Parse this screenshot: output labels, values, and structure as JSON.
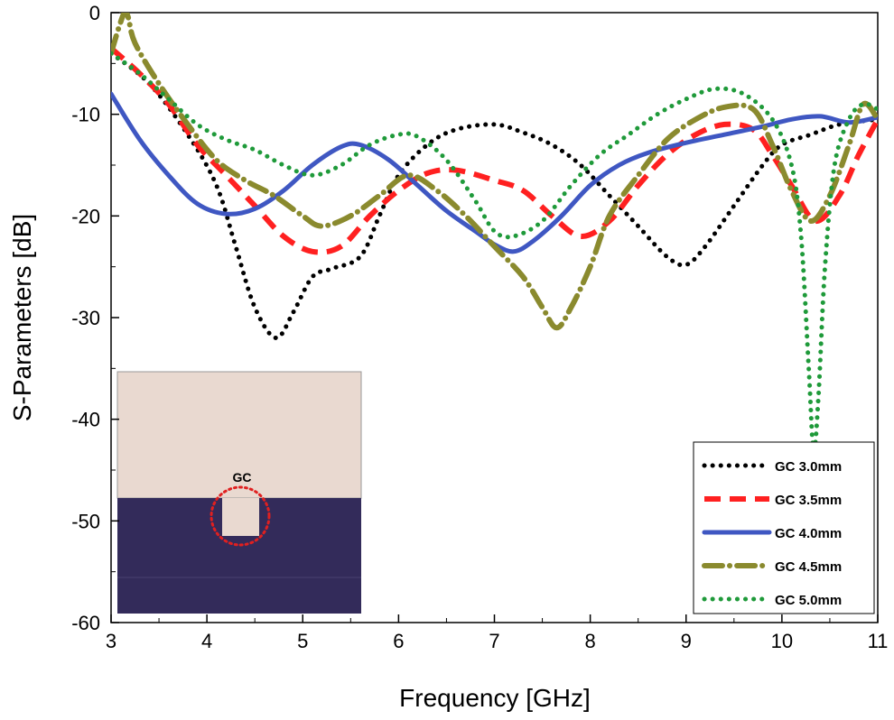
{
  "chart_data": {
    "type": "line",
    "title": "",
    "xlabel": "Frequency [GHz]",
    "ylabel": "S-Parameters [dB]",
    "xlim": [
      3,
      11
    ],
    "ylim": [
      -60,
      0
    ],
    "x_ticks": [
      3,
      4,
      5,
      6,
      7,
      8,
      9,
      10,
      11
    ],
    "y_ticks": [
      0,
      -10,
      -20,
      -30,
      -40,
      -50,
      -60
    ],
    "x_tick_labels": [
      "3",
      "4",
      "5",
      "6",
      "7",
      "8",
      "9",
      "10",
      "11"
    ],
    "y_tick_labels": [
      "0",
      "-10",
      "-20",
      "-30",
      "-40",
      "-50",
      "-60"
    ],
    "legend_position": "bottom-right",
    "series": [
      {
        "name": "GC 3.0mm",
        "color": "#000000",
        "style": "dotted",
        "points": [
          [
            3.0,
            -4
          ],
          [
            3.4,
            -7
          ],
          [
            3.8,
            -12
          ],
          [
            4.1,
            -17
          ],
          [
            4.3,
            -23
          ],
          [
            4.5,
            -29
          ],
          [
            4.72,
            -32
          ],
          [
            4.9,
            -29.5
          ],
          [
            5.1,
            -26
          ],
          [
            5.3,
            -25.2
          ],
          [
            5.6,
            -24
          ],
          [
            5.8,
            -20
          ],
          [
            6.0,
            -16
          ],
          [
            6.3,
            -13
          ],
          [
            6.6,
            -11.5
          ],
          [
            7.0,
            -11
          ],
          [
            7.3,
            -11.8
          ],
          [
            7.6,
            -13
          ],
          [
            7.9,
            -15
          ],
          [
            8.2,
            -18
          ],
          [
            8.5,
            -21
          ],
          [
            8.8,
            -24
          ],
          [
            9.0,
            -24.8
          ],
          [
            9.2,
            -23
          ],
          [
            9.5,
            -19
          ],
          [
            9.8,
            -15
          ],
          [
            10.0,
            -13
          ],
          [
            10.3,
            -12
          ],
          [
            10.6,
            -11
          ],
          [
            11.0,
            -10.5
          ]
        ]
      },
      {
        "name": "GC 3.5mm",
        "color": "#ff2020",
        "style": "dashed",
        "points": [
          [
            3.0,
            -3.5
          ],
          [
            3.3,
            -6
          ],
          [
            3.6,
            -9
          ],
          [
            3.9,
            -13
          ],
          [
            4.2,
            -16
          ],
          [
            4.5,
            -19
          ],
          [
            4.8,
            -22
          ],
          [
            5.1,
            -23.5
          ],
          [
            5.4,
            -23
          ],
          [
            5.7,
            -20
          ],
          [
            6.0,
            -17.5
          ],
          [
            6.3,
            -15.8
          ],
          [
            6.6,
            -15.5
          ],
          [
            7.0,
            -16.5
          ],
          [
            7.3,
            -17.5
          ],
          [
            7.6,
            -20
          ],
          [
            7.9,
            -22
          ],
          [
            8.2,
            -20.5
          ],
          [
            8.5,
            -17
          ],
          [
            8.8,
            -14
          ],
          [
            9.1,
            -12
          ],
          [
            9.4,
            -11
          ],
          [
            9.7,
            -11.5
          ],
          [
            9.9,
            -14
          ],
          [
            10.1,
            -17
          ],
          [
            10.35,
            -20.5
          ],
          [
            10.6,
            -18
          ],
          [
            10.8,
            -14
          ],
          [
            11.0,
            -10.5
          ]
        ]
      },
      {
        "name": "GC 4.0mm",
        "color": "#3f57c2",
        "style": "solid",
        "points": [
          [
            3.0,
            -8
          ],
          [
            3.3,
            -12.5
          ],
          [
            3.6,
            -16
          ],
          [
            3.9,
            -18.8
          ],
          [
            4.2,
            -19.8
          ],
          [
            4.5,
            -19.3
          ],
          [
            4.8,
            -17.5
          ],
          [
            5.1,
            -15
          ],
          [
            5.4,
            -13.2
          ],
          [
            5.6,
            -13
          ],
          [
            5.9,
            -14.5
          ],
          [
            6.2,
            -17
          ],
          [
            6.5,
            -19.5
          ],
          [
            6.8,
            -21.5
          ],
          [
            7.0,
            -22.8
          ],
          [
            7.2,
            -23.5
          ],
          [
            7.4,
            -22.5
          ],
          [
            7.7,
            -20
          ],
          [
            8.0,
            -17
          ],
          [
            8.3,
            -15
          ],
          [
            8.6,
            -13.8
          ],
          [
            9.0,
            -12.8
          ],
          [
            9.4,
            -12
          ],
          [
            9.8,
            -11.2
          ],
          [
            10.1,
            -10.5
          ],
          [
            10.4,
            -10.2
          ],
          [
            10.7,
            -10.8
          ],
          [
            11.0,
            -10.3
          ]
        ]
      },
      {
        "name": "GC 4.5mm",
        "color": "#8a8a2e",
        "style": "dashdot",
        "points": [
          [
            3.0,
            -4
          ],
          [
            3.08,
            -1.5
          ],
          [
            3.14,
            0
          ],
          [
            3.18,
            -0.5
          ],
          [
            3.25,
            -3
          ],
          [
            3.5,
            -7
          ],
          [
            3.8,
            -11
          ],
          [
            4.1,
            -14.5
          ],
          [
            4.4,
            -16.5
          ],
          [
            4.7,
            -18
          ],
          [
            5.0,
            -20
          ],
          [
            5.2,
            -21
          ],
          [
            5.5,
            -20
          ],
          [
            5.8,
            -18
          ],
          [
            6.1,
            -16
          ],
          [
            6.4,
            -17.5
          ],
          [
            6.7,
            -20
          ],
          [
            7.0,
            -23
          ],
          [
            7.3,
            -26
          ],
          [
            7.5,
            -29
          ],
          [
            7.65,
            -31
          ],
          [
            7.8,
            -29
          ],
          [
            8.0,
            -25
          ],
          [
            8.2,
            -20
          ],
          [
            8.5,
            -16
          ],
          [
            8.8,
            -12.5
          ],
          [
            9.1,
            -10.5
          ],
          [
            9.4,
            -9.3
          ],
          [
            9.7,
            -9.5
          ],
          [
            9.9,
            -13
          ],
          [
            10.1,
            -17.5
          ],
          [
            10.3,
            -20.5
          ],
          [
            10.5,
            -18
          ],
          [
            10.7,
            -13
          ],
          [
            10.85,
            -9
          ],
          [
            11.0,
            -10.5
          ]
        ]
      },
      {
        "name": "GC 5.0mm",
        "color": "#1f9a3a",
        "style": "dotted",
        "points": [
          [
            3.0,
            -4
          ],
          [
            3.3,
            -6
          ],
          [
            3.6,
            -8.5
          ],
          [
            3.9,
            -11
          ],
          [
            4.2,
            -12.5
          ],
          [
            4.5,
            -13.5
          ],
          [
            4.8,
            -15
          ],
          [
            5.1,
            -16
          ],
          [
            5.4,
            -15
          ],
          [
            5.7,
            -13
          ],
          [
            6.0,
            -12
          ],
          [
            6.2,
            -12.2
          ],
          [
            6.5,
            -14.5
          ],
          [
            6.8,
            -18.5
          ],
          [
            7.0,
            -21.5
          ],
          [
            7.2,
            -22
          ],
          [
            7.5,
            -20.5
          ],
          [
            7.8,
            -17
          ],
          [
            8.1,
            -14
          ],
          [
            8.4,
            -12
          ],
          [
            8.7,
            -10
          ],
          [
            9.0,
            -8.5
          ],
          [
            9.3,
            -7.5
          ],
          [
            9.6,
            -8
          ],
          [
            9.9,
            -10.5
          ],
          [
            10.1,
            -15
          ],
          [
            10.2,
            -22
          ],
          [
            10.28,
            -35
          ],
          [
            10.33,
            -43
          ],
          [
            10.38,
            -38
          ],
          [
            10.45,
            -25
          ],
          [
            10.55,
            -15
          ],
          [
            10.7,
            -10.5
          ],
          [
            10.85,
            -9
          ],
          [
            11.0,
            -9.5
          ]
        ]
      }
    ],
    "inset": {
      "label": "GC",
      "top_color": "#e9d9d0",
      "bottom_color": "#332b5a",
      "marker_color": "#e02020"
    }
  }
}
